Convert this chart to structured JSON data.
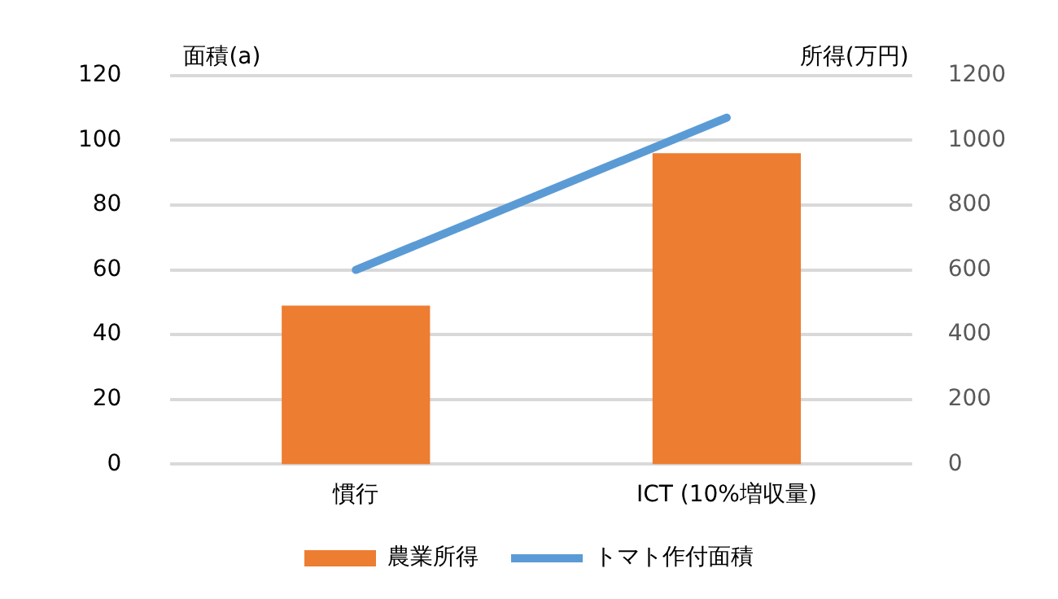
{
  "chart_data": {
    "type": "bar",
    "categories": [
      "慣行",
      "ICT (10%増収量)"
    ],
    "ylabel": "面積(a)",
    "y2label": "所得(万円)",
    "series": [
      {
        "name": "農業所得",
        "color": "#ed7d31",
        "values": [
          490,
          960
        ],
        "axis": "y2"
      },
      {
        "name": "トマト作付面積",
        "type": "line",
        "color": "#5b9bd5",
        "values": [
          60,
          107
        ],
        "marker": "none"
      }
    ],
    "ylim": [
      0,
      120
    ],
    "yticks": [
      0,
      20,
      40,
      60,
      80,
      100,
      120
    ],
    "y2lim": [
      0,
      1200
    ],
    "y2ticks": [
      0,
      200,
      400,
      600,
      800,
      1000,
      1200
    ],
    "grid": "y",
    "legend": "bottom"
  }
}
